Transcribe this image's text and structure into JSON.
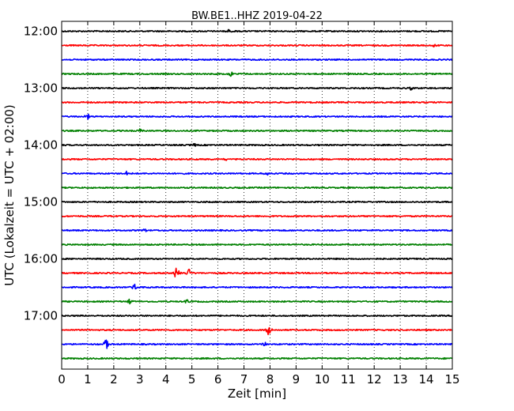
{
  "chart_data": {
    "type": "line",
    "title": "BW.BE1..HHZ 2019-04-22",
    "xlabel": "Zeit  [min]",
    "ylabel": "UTC (Lokalzeit = UTC + 02:00)",
    "xlim": [
      0,
      15
    ],
    "x_ticks": [
      "0",
      "1",
      "2",
      "3",
      "4",
      "5",
      "6",
      "7",
      "8",
      "9",
      "10",
      "11",
      "12",
      "13",
      "14",
      "15"
    ],
    "y_ticks": [
      "12:00",
      "13:00",
      "14:00",
      "15:00",
      "16:00",
      "17:00"
    ],
    "grid": "vertical dotted",
    "series_colors": [
      "#000000",
      "#ff0000",
      "#0000ff",
      "#008000"
    ],
    "traces": [
      {
        "start": "12:00",
        "events": [
          {
            "t": 6.4,
            "amp": 0.6
          }
        ]
      },
      {
        "start": "12:15",
        "events": [
          {
            "t": 14.3,
            "amp": 0.8
          }
        ]
      },
      {
        "start": "12:30",
        "events": []
      },
      {
        "start": "12:45",
        "events": [
          {
            "t": 6.5,
            "amp": 1.0
          }
        ]
      },
      {
        "start": "13:00",
        "events": [
          {
            "t": 13.4,
            "amp": 0.8
          }
        ]
      },
      {
        "start": "13:15",
        "events": []
      },
      {
        "start": "13:30",
        "events": [
          {
            "t": 1.0,
            "amp": 1.5
          }
        ]
      },
      {
        "start": "13:45",
        "events": [
          {
            "t": 3.0,
            "amp": 0.8
          }
        ]
      },
      {
        "start": "14:00",
        "events": [
          {
            "t": 5.1,
            "amp": 0.7
          }
        ]
      },
      {
        "start": "14:15",
        "events": [
          {
            "t": 6.3,
            "amp": 0.6
          }
        ]
      },
      {
        "start": "14:30",
        "events": [
          {
            "t": 2.5,
            "amp": 0.9
          },
          {
            "t": 7.9,
            "amp": 0.8
          }
        ]
      },
      {
        "start": "14:45",
        "events": []
      },
      {
        "start": "15:00",
        "events": []
      },
      {
        "start": "15:15",
        "events": []
      },
      {
        "start": "15:30",
        "events": [
          {
            "t": 3.2,
            "amp": 0.6
          }
        ]
      },
      {
        "start": "15:45",
        "events": []
      },
      {
        "start": "16:00",
        "events": []
      },
      {
        "start": "16:15",
        "events": [
          {
            "t": 4.4,
            "amp": 4.0
          },
          {
            "t": 4.9,
            "amp": 2.8
          }
        ]
      },
      {
        "start": "16:30",
        "events": [
          {
            "t": 2.8,
            "amp": 1.8
          }
        ]
      },
      {
        "start": "16:45",
        "events": [
          {
            "t": 2.6,
            "amp": 1.2
          },
          {
            "t": 4.8,
            "amp": 1.2
          }
        ]
      },
      {
        "start": "17:00",
        "events": []
      },
      {
        "start": "17:15",
        "events": [
          {
            "t": 7.95,
            "amp": 2.8
          }
        ]
      },
      {
        "start": "17:30",
        "events": [
          {
            "t": 1.7,
            "amp": 3.0
          },
          {
            "t": 7.8,
            "amp": 1.2
          }
        ]
      },
      {
        "start": "17:45",
        "events": []
      }
    ]
  }
}
